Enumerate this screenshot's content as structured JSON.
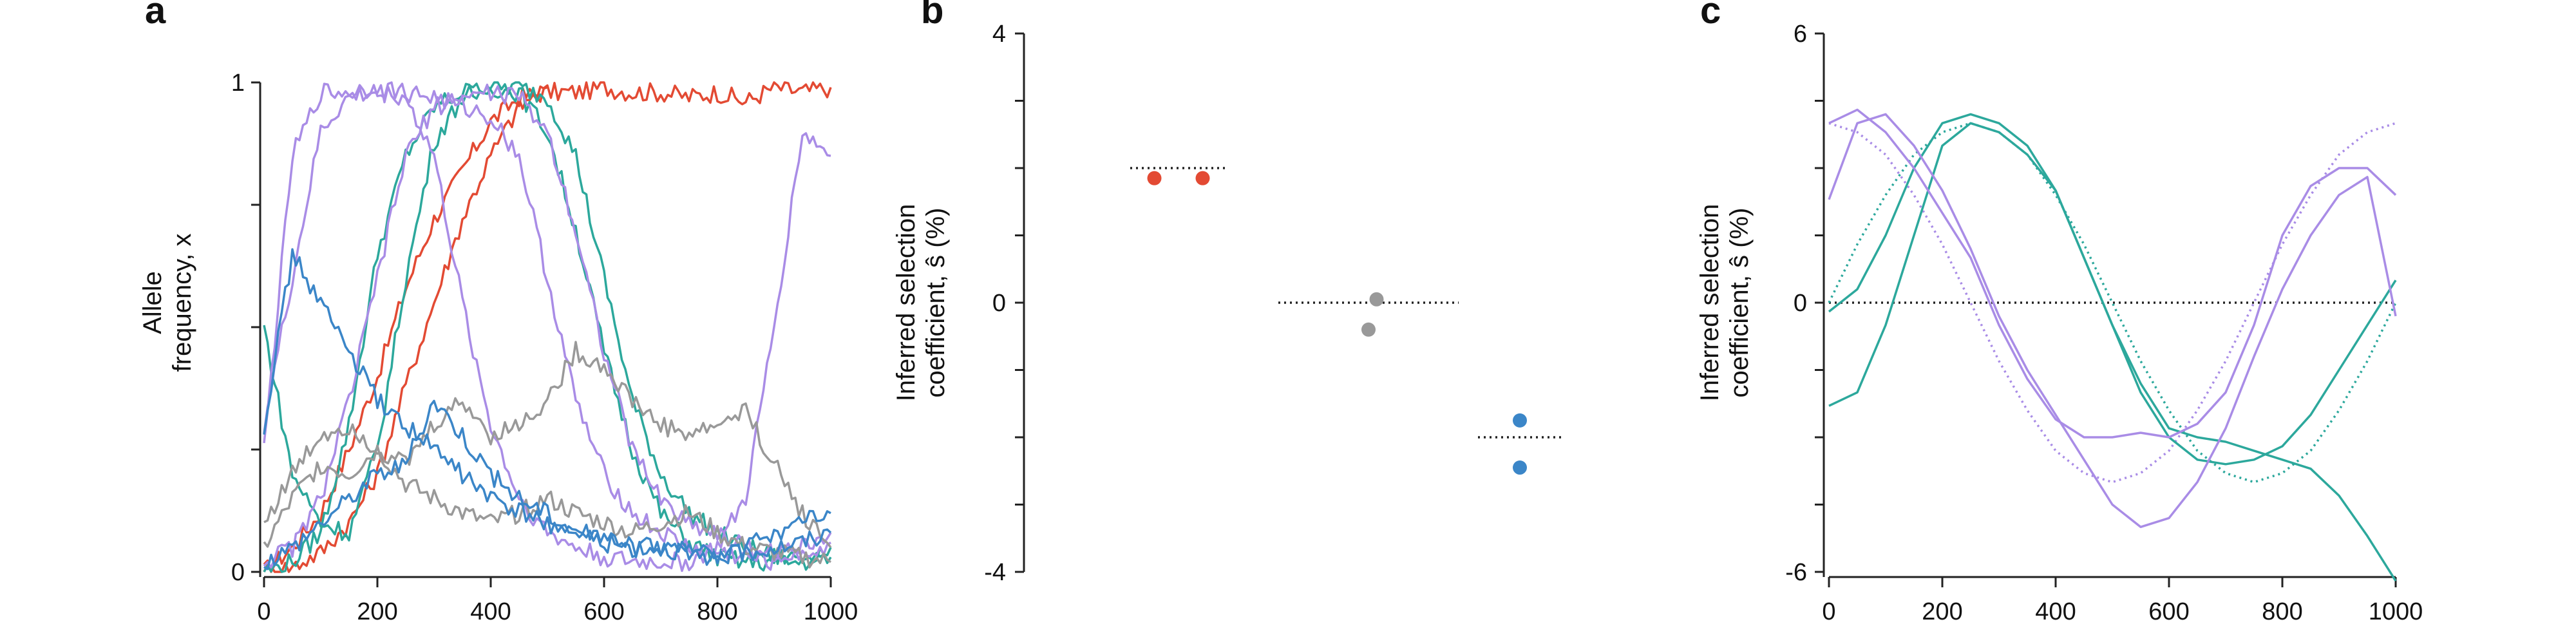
{
  "colors": {
    "red": "#e34a33",
    "teal": "#2ca89c",
    "purple": "#a98ce6",
    "gray": "#999999",
    "blue": "#3b86c8",
    "dotted": "#222222"
  },
  "chart_data": [
    {
      "panel": "a",
      "type": "line",
      "ylabel_lines": [
        "Allele",
        "frequency, x"
      ],
      "xlim": [
        0,
        1000
      ],
      "ylim": [
        0,
        1
      ],
      "xticks": [
        0,
        200,
        400,
        600,
        800,
        1000
      ],
      "yticks": [
        0,
        1
      ],
      "series": [
        {
          "color": "red",
          "x": [
            0,
            50,
            100,
            150,
            200,
            250,
            300,
            350,
            400,
            450,
            500,
            550,
            600,
            650,
            700,
            750,
            800,
            850,
            900,
            950,
            1000
          ],
          "y": [
            0,
            0.05,
            0.12,
            0.25,
            0.4,
            0.58,
            0.72,
            0.82,
            0.92,
            0.97,
            0.98,
            0.98,
            0.99,
            0.98,
            0.98,
            0.97,
            0.98,
            0.96,
            0.99,
            0.98,
            0.99
          ]
        },
        {
          "color": "red",
          "x": [
            0,
            50,
            100,
            150,
            200,
            250,
            300,
            350,
            400,
            450,
            500
          ],
          "y": [
            0,
            0.01,
            0.04,
            0.1,
            0.2,
            0.38,
            0.55,
            0.72,
            0.85,
            0.95,
            0.99
          ]
        },
        {
          "color": "teal",
          "x": [
            0,
            50,
            100,
            150,
            200,
            250,
            300,
            350,
            400,
            450,
            500,
            550,
            600,
            650,
            700,
            750,
            800,
            850,
            900,
            950,
            1000
          ],
          "y": [
            0,
            0.02,
            0.08,
            0.3,
            0.65,
            0.85,
            0.95,
            0.98,
            0.99,
            0.99,
            0.97,
            0.85,
            0.6,
            0.35,
            0.2,
            0.12,
            0.08,
            0.05,
            0.03,
            0.03,
            0.05
          ]
        },
        {
          "color": "teal",
          "x": [
            0,
            50,
            100,
            150,
            200,
            250,
            300,
            350,
            400,
            450,
            500,
            550,
            600,
            650,
            700,
            750,
            800,
            850,
            900,
            950,
            1000
          ],
          "y": [
            0.5,
            0.2,
            0.1,
            0.08,
            0.25,
            0.6,
            0.88,
            0.97,
            0.99,
            0.98,
            0.9,
            0.7,
            0.45,
            0.25,
            0.12,
            0.06,
            0.03,
            0.02,
            0.02,
            0.02,
            0.03
          ]
        },
        {
          "color": "purple",
          "x": [
            0,
            50,
            100,
            150,
            200,
            250,
            300,
            350,
            400,
            450,
            500,
            550,
            600,
            650,
            700,
            750,
            800,
            850,
            900,
            950,
            1000
          ],
          "y": [
            0.25,
            0.85,
            0.98,
            0.98,
            0.99,
            0.98,
            0.97,
            0.95,
            0.93,
            0.85,
            0.6,
            0.35,
            0.2,
            0.12,
            0.08,
            0.05,
            0.04,
            0.03,
            0.02,
            0.05,
            0.08
          ]
        },
        {
          "color": "purple",
          "x": [
            0,
            50,
            100,
            150,
            200,
            250,
            300,
            350,
            400,
            450,
            500,
            550,
            600,
            650,
            700,
            750,
            800,
            850,
            900,
            950,
            1000
          ],
          "y": [
            0.3,
            0.6,
            0.9,
            0.97,
            0.98,
            0.97,
            0.85,
            0.55,
            0.3,
            0.15,
            0.08,
            0.05,
            0.03,
            0.02,
            0.02,
            0.02,
            0.05,
            0.15,
            0.5,
            0.9,
            0.85
          ]
        },
        {
          "color": "purple",
          "x": [
            0,
            50,
            100,
            150,
            200,
            250,
            300,
            350,
            400,
            450,
            500,
            550,
            600,
            650,
            700,
            750,
            800,
            850,
            900,
            950,
            1000
          ],
          "y": [
            0.02,
            0.05,
            0.15,
            0.35,
            0.6,
            0.85,
            0.95,
            0.97,
            0.98,
            0.97,
            0.9,
            0.7,
            0.45,
            0.25,
            0.15,
            0.1,
            0.08,
            0.05,
            0.04,
            0.04,
            0.06
          ]
        },
        {
          "color": "gray",
          "x": [
            0,
            50,
            100,
            150,
            200,
            250,
            300,
            350,
            400,
            450,
            500,
            550,
            600,
            650,
            700,
            750,
            800,
            850,
            900,
            950,
            1000
          ],
          "y": [
            0.1,
            0.2,
            0.28,
            0.3,
            0.25,
            0.22,
            0.3,
            0.35,
            0.28,
            0.3,
            0.35,
            0.45,
            0.42,
            0.35,
            0.3,
            0.28,
            0.3,
            0.33,
            0.22,
            0.12,
            0.05
          ]
        },
        {
          "color": "gray",
          "x": [
            0,
            50,
            100,
            150,
            200,
            250,
            300,
            350,
            400,
            450,
            500,
            550,
            600,
            650,
            700,
            750,
            800,
            850,
            900,
            950,
            1000
          ],
          "y": [
            0.05,
            0.15,
            0.22,
            0.2,
            0.25,
            0.18,
            0.15,
            0.12,
            0.1,
            0.12,
            0.15,
            0.12,
            0.1,
            0.08,
            0.1,
            0.12,
            0.08,
            0.05,
            0.04,
            0.03,
            0.02
          ]
        },
        {
          "color": "blue",
          "x": [
            0,
            50,
            100,
            150,
            200,
            250,
            300,
            350,
            400,
            450,
            500,
            550,
            600,
            650,
            700,
            750,
            800,
            850,
            900,
            950,
            1000
          ],
          "y": [
            0.3,
            0.65,
            0.55,
            0.45,
            0.35,
            0.3,
            0.25,
            0.2,
            0.15,
            0.12,
            0.1,
            0.08,
            0.07,
            0.05,
            0.05,
            0.04,
            0.03,
            0.05,
            0.08,
            0.1,
            0.12
          ]
        },
        {
          "color": "blue",
          "x": [
            0,
            50,
            100,
            150,
            200,
            250,
            300,
            350,
            400,
            450,
            500,
            550,
            600,
            650,
            700,
            750,
            800,
            850,
            900,
            950,
            1000
          ],
          "y": [
            0.02,
            0.05,
            0.1,
            0.15,
            0.2,
            0.22,
            0.35,
            0.28,
            0.2,
            0.15,
            0.12,
            0.08,
            0.06,
            0.05,
            0.05,
            0.04,
            0.03,
            0.04,
            0.05,
            0.06,
            0.08
          ]
        }
      ]
    },
    {
      "panel": "b",
      "type": "scatter",
      "ylabel_lines": [
        "Inferred selection",
        "coefficient, ŝ (%)"
      ],
      "ylim": [
        -4,
        4
      ],
      "yticks": [
        -4,
        0,
        4
      ],
      "groups": [
        {
          "color": "red",
          "true_value": 2,
          "points": [
            1.85,
            1.85
          ],
          "offsets": [
            -0.15,
            0.15
          ]
        },
        {
          "color": "gray",
          "true_value": 0,
          "points": [
            0.05,
            -0.4
          ],
          "offsets": [
            0.05,
            0.0
          ]
        },
        {
          "color": "blue",
          "true_value": -2,
          "points": [
            -1.75,
            -2.45
          ],
          "offsets": [
            0.0,
            0.0
          ]
        }
      ]
    },
    {
      "panel": "c",
      "type": "line",
      "ylabel_lines": [
        "Inferred selection",
        "coefficient, ŝ (%)"
      ],
      "xlim": [
        0,
        1000
      ],
      "ylim": [
        -6,
        6
      ],
      "xticks": [
        0,
        200,
        400,
        600,
        800,
        1000
      ],
      "yticks": [
        -6,
        0,
        6
      ],
      "series": [
        {
          "color": "teal",
          "style": "dotted",
          "x": [
            0,
            50,
            100,
            150,
            200,
            250,
            300,
            350,
            400,
            450,
            500,
            550,
            600,
            650,
            700,
            750,
            800,
            850,
            900,
            950,
            1000
          ],
          "y": [
            0,
            1.3,
            2.4,
            3.3,
            3.8,
            4,
            3.8,
            3.3,
            2.4,
            1.3,
            0,
            -1.3,
            -2.4,
            -3.3,
            -3.8,
            -4,
            -3.8,
            -3.3,
            -2.4,
            -1.3,
            0
          ]
        },
        {
          "color": "purple",
          "style": "dotted",
          "x": [
            0,
            50,
            100,
            150,
            200,
            250,
            300,
            350,
            400,
            450,
            500,
            550,
            600,
            650,
            700,
            750,
            800,
            850,
            900,
            950,
            1000
          ],
          "y": [
            4,
            3.8,
            3.3,
            2.4,
            1.3,
            0,
            -1.3,
            -2.4,
            -3.3,
            -3.8,
            -4,
            -3.8,
            -3.3,
            -2.4,
            -1.3,
            0,
            1.3,
            2.4,
            3.3,
            3.8,
            4
          ]
        },
        {
          "color": "teal",
          "style": "solid",
          "x": [
            0,
            50,
            100,
            150,
            200,
            250,
            300,
            350,
            400,
            450,
            500,
            550,
            600,
            650,
            700,
            750,
            800,
            850,
            900,
            950,
            1000
          ],
          "y": [
            -0.2,
            0.3,
            1.5,
            3,
            4,
            4.2,
            4,
            3.5,
            2.5,
            1,
            -0.5,
            -2,
            -3,
            -3.5,
            -3.6,
            -3.5,
            -3.2,
            -2.5,
            -1.5,
            -0.5,
            0.5
          ]
        },
        {
          "color": "teal",
          "style": "solid",
          "x": [
            0,
            50,
            100,
            150,
            200,
            250,
            300,
            350,
            400,
            450,
            500,
            550,
            600,
            650,
            700,
            750,
            800,
            850,
            900,
            950,
            1000
          ],
          "y": [
            -2.3,
            -2,
            -0.5,
            1.5,
            3.5,
            4,
            3.8,
            3.3,
            2.5,
            1,
            -0.5,
            -1.8,
            -2.8,
            -3,
            -3.1,
            -3.3,
            -3.5,
            -3.7,
            -4.3,
            -5.2,
            -6.2
          ]
        },
        {
          "color": "purple",
          "style": "solid",
          "x": [
            0,
            50,
            100,
            150,
            200,
            250,
            300,
            350,
            400,
            450,
            500,
            550,
            600,
            650,
            700,
            750,
            800,
            850,
            900,
            950,
            1000
          ],
          "y": [
            4,
            4.3,
            3.8,
            3,
            2,
            1,
            -0.5,
            -1.7,
            -2.6,
            -3,
            -3,
            -2.9,
            -3,
            -2.7,
            -2,
            -0.5,
            1.5,
            2.6,
            3,
            3,
            2.4
          ]
        },
        {
          "color": "purple",
          "style": "solid",
          "x": [
            0,
            50,
            100,
            150,
            200,
            250,
            300,
            350,
            400,
            450,
            500,
            550,
            600,
            650,
            700,
            750,
            800,
            850,
            900,
            950,
            1000
          ],
          "y": [
            2.3,
            4,
            4.2,
            3.5,
            2.5,
            1.2,
            -0.3,
            -1.5,
            -2.5,
            -3.5,
            -4.5,
            -5,
            -4.8,
            -4,
            -2.8,
            -1.2,
            0.3,
            1.5,
            2.4,
            2.8,
            -0.3
          ]
        }
      ]
    }
  ],
  "labels": {
    "panel_a": "a",
    "panel_b": "b",
    "panel_c": "c"
  }
}
